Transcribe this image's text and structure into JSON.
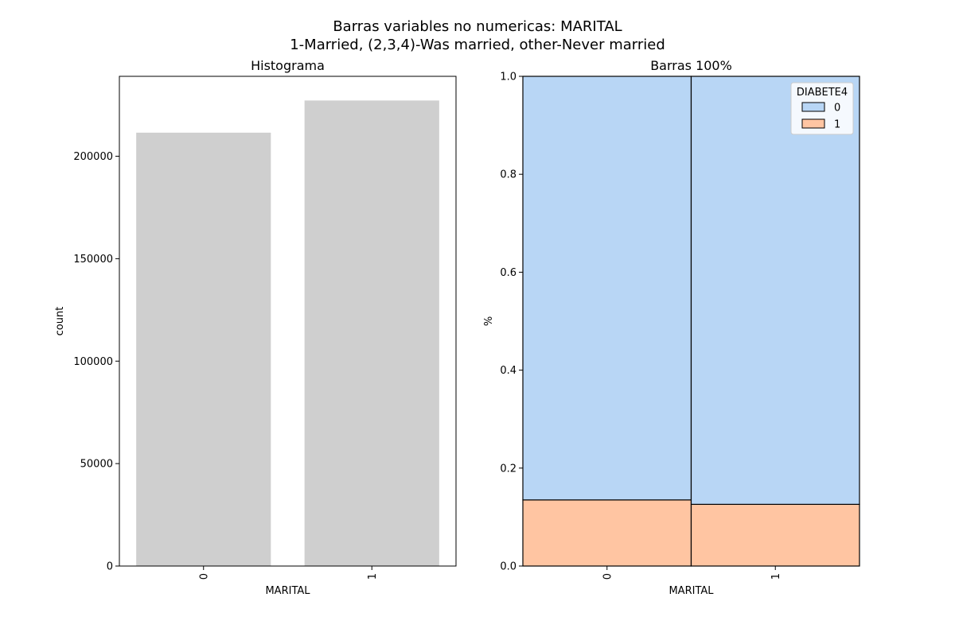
{
  "figure": {
    "title_line1": "Barras variables no numericas: MARITAL",
    "title_line2": "1-Married, (2,3,4)-Was married, other-Never married"
  },
  "chart_data": [
    {
      "type": "bar",
      "title": "Histograma",
      "xlabel": "MARITAL",
      "ylabel": "count",
      "categories": [
        "0",
        "1"
      ],
      "values": [
        211500,
        227200
      ],
      "ylim": [
        0,
        239000
      ],
      "yticks": [
        0,
        50000,
        100000,
        150000,
        200000
      ],
      "grid": false,
      "colors": {
        "bar": "#cfcfcf"
      }
    },
    {
      "type": "bar",
      "stacked": true,
      "normalized": true,
      "title": "Barras 100%",
      "xlabel": "MARITAL",
      "ylabel": "%",
      "categories": [
        "0",
        "1"
      ],
      "ylim": [
        0,
        1
      ],
      "yticks": [
        "0.0",
        "0.2",
        "0.4",
        "0.6",
        "0.8",
        "1.0"
      ],
      "grid": false,
      "legend": {
        "title": "DIABETE4",
        "placement": "top-right"
      },
      "series": [
        {
          "name": "0",
          "values": [
            0.865,
            0.874
          ],
          "color": "#b8d6f5"
        },
        {
          "name": "1",
          "values": [
            0.135,
            0.126
          ],
          "color": "#ffc5a2"
        }
      ]
    }
  ]
}
